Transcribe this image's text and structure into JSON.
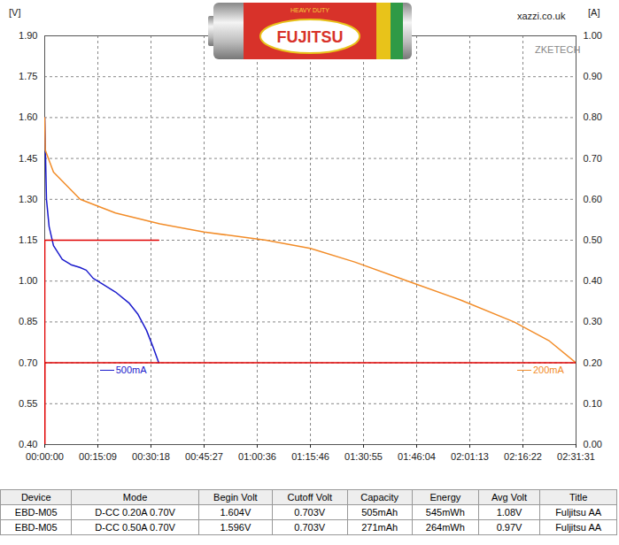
{
  "chart_data": {
    "type": "line",
    "y_label": "[V]",
    "y2_label": "[A]",
    "annotations": [
      "xazzi.co.uk",
      "ZKETECH"
    ],
    "xlim": [
      0,
      9091
    ],
    "xticks": [
      {
        "value": 0,
        "label": "00:00:00"
      },
      {
        "value": 909,
        "label": "00:15:09"
      },
      {
        "value": 1818,
        "label": "00:30:18"
      },
      {
        "value": 2727,
        "label": "00:45:27"
      },
      {
        "value": 3636,
        "label": "01:00:36"
      },
      {
        "value": 4546,
        "label": "01:15:46"
      },
      {
        "value": 5455,
        "label": "01:30:55"
      },
      {
        "value": 6364,
        "label": "01:46:04"
      },
      {
        "value": 7273,
        "label": "02:01:13"
      },
      {
        "value": 8182,
        "label": "02:16:22"
      },
      {
        "value": 9091,
        "label": "02:31:31"
      }
    ],
    "ylim": [
      0.4,
      1.9
    ],
    "yticks": [
      {
        "value": 0.4,
        "label": "0.40"
      },
      {
        "value": 0.55,
        "label": "0.55"
      },
      {
        "value": 0.7,
        "label": "0.70"
      },
      {
        "value": 0.85,
        "label": "0.85"
      },
      {
        "value": 1.0,
        "label": "1.00"
      },
      {
        "value": 1.15,
        "label": "1.15"
      },
      {
        "value": 1.3,
        "label": "1.30"
      },
      {
        "value": 1.45,
        "label": "1.45"
      },
      {
        "value": 1.6,
        "label": "1.60"
      },
      {
        "value": 1.75,
        "label": "1.75"
      },
      {
        "value": 1.9,
        "label": "1.90"
      }
    ],
    "y2lim": [
      0,
      1
    ],
    "y2ticks": [
      {
        "value": 0,
        "label": "0.00"
      },
      {
        "value": 0.1,
        "label": "0.10"
      },
      {
        "value": 0.2,
        "label": "0.20"
      },
      {
        "value": 0.3,
        "label": "0.30"
      },
      {
        "value": 0.4,
        "label": "0.40"
      },
      {
        "value": 0.5,
        "label": "0.50"
      },
      {
        "value": 0.6,
        "label": "0.60"
      },
      {
        "value": 0.7,
        "label": "0.70"
      },
      {
        "value": 0.8,
        "label": "0.80"
      },
      {
        "value": 0.9,
        "label": "0.90"
      },
      {
        "value": 1,
        "label": "1.00"
      }
    ],
    "grid": true,
    "series": [
      {
        "name": "500mA",
        "color": "#1a1acc",
        "x": [
          0,
          30,
          75,
          150,
          300,
          450,
          600,
          710,
          830,
          985,
          1210,
          1440,
          1590,
          1740,
          1850,
          1951
        ],
        "values": [
          1.6,
          1.3,
          1.2,
          1.13,
          1.08,
          1.06,
          1.05,
          1.04,
          1.01,
          0.99,
          0.96,
          0.92,
          0.88,
          0.82,
          0.76,
          0.7
        ]
      },
      {
        "name": "200mA",
        "color": "#f28c28",
        "x": [
          0,
          10,
          150,
          606,
          1212,
          1970,
          2727,
          3788,
          4546,
          5303,
          6212,
          7121,
          8030,
          8636,
          9091
        ],
        "values": [
          1.6,
          1.48,
          1.4,
          1.3,
          1.25,
          1.21,
          1.18,
          1.15,
          1.12,
          1.07,
          1.0,
          0.93,
          0.85,
          0.78,
          0.7
        ]
      },
      {
        "color": "#e00000",
        "axis": "y2",
        "x": [
          0,
          1,
          1951
        ],
        "values": [
          0,
          0.5,
          0.5
        ]
      },
      {
        "color": "#e00000",
        "axis": "y2",
        "x": [
          0,
          1,
          9091
        ],
        "values": [
          0,
          0.2,
          0.2
        ]
      }
    ]
  },
  "image": {
    "texts": [
      "HEAVY DUTY",
      "FUJITSU"
    ]
  },
  "table": {
    "header": [
      "Device",
      "Mode",
      "Begin Volt",
      "Cutoff Volt",
      "Capacity",
      "Energy",
      "Avg Volt",
      "Title"
    ],
    "rows": [
      [
        "EBD-M05",
        "D-CC 0.20A 0.70V",
        "1.604V",
        "0.703V",
        "505mAh",
        "545mWh",
        "1.08V",
        "Fuljitsu AA"
      ],
      [
        "EBD-M05",
        "D-CC 0.50A 0.70V",
        "1.596V",
        "0.703V",
        "271mAh",
        "264mWh",
        "0.97V",
        "Fuljitsu AA"
      ]
    ]
  }
}
